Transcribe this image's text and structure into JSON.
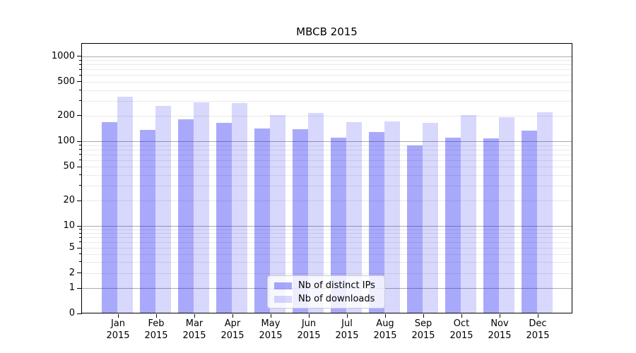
{
  "title": "MBCB 2015",
  "chart_data": {
    "type": "bar",
    "title": "MBCB 2015",
    "categories": [
      "Jan",
      "Feb",
      "Mar",
      "Apr",
      "May",
      "Jun",
      "Jul",
      "Aug",
      "Sep",
      "Oct",
      "Nov",
      "Dec"
    ],
    "category_year": "2015",
    "series": [
      {
        "name": "Nb of distinct IPs",
        "values": [
          168,
          136,
          181,
          165,
          142,
          139,
          110,
          128,
          89,
          110,
          108,
          133
        ],
        "color": "rgba(10,10,245,0.35)"
      },
      {
        "name": "Nb of downloads",
        "values": [
          332,
          260,
          285,
          280,
          204,
          213,
          168,
          172,
          165,
          202,
          190,
          218
        ],
        "color": "rgba(10,10,245,0.16)"
      }
    ],
    "y_axis": {
      "scale": "symlog",
      "tick_values": [
        1000,
        500,
        200,
        100,
        50,
        20,
        10,
        5,
        2,
        1,
        0
      ],
      "tick_labels": [
        "1000",
        "500",
        "200",
        "100",
        "50",
        "20",
        "10",
        "5",
        "2",
        "1",
        "0"
      ],
      "major_tick_values": [
        1000,
        100,
        10,
        1
      ],
      "minor_tick_values": [
        900,
        800,
        700,
        600,
        500,
        400,
        300,
        200,
        90,
        80,
        70,
        60,
        50,
        40,
        30,
        20,
        9,
        8,
        7,
        6,
        5,
        4,
        3,
        2
      ]
    },
    "legend": {
      "position": "lower center",
      "entries": [
        "Nb of distinct IPs",
        "Nb of downloads"
      ]
    },
    "grid": true,
    "colors": {
      "grid_major": "#ababab",
      "grid_minor": "#e9e9e9",
      "axis": "#000000",
      "background": "#ffffff"
    }
  }
}
